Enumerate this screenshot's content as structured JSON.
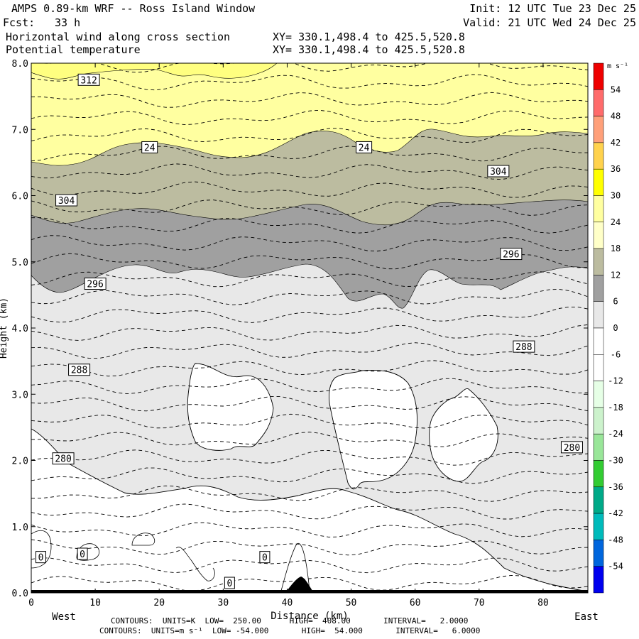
{
  "header": {
    "title": "AMPS 0.89-km WRF -- Ross Island Window",
    "fcst_label": "Fcst:",
    "fcst_value": "33 h",
    "init": "Init: 12 UTC Tue 23 Dec 25",
    "valid": "Valid: 21 UTC Wed 24 Dec 25",
    "field1": "Horizontal wind along cross section",
    "field2": "Potential temperature",
    "xy1": "XY= 330.1,498.4 to 425.5,520.8",
    "xy2": "XY= 330.1,498.4 to 425.5,520.8"
  },
  "chart_data": {
    "type": "heatmap",
    "title": "Horizontal wind along cross section (shaded) and potential temperature (contours)",
    "xlabel": "Distance (km)",
    "ylabel": "Height (km)",
    "xlim": [
      0,
      87
    ],
    "ylim": [
      0,
      8
    ],
    "x_ticks": [
      0,
      10,
      20,
      30,
      40,
      50,
      60,
      70,
      80
    ],
    "y_ticks": [
      "0.0",
      "1.0",
      "2.0",
      "3.0",
      "4.0",
      "5.0",
      "6.0",
      "7.0",
      "8.0"
    ],
    "x_end_labels": {
      "left": "West",
      "right": "East"
    },
    "colorbar": {
      "units_label": "m s⁻¹",
      "levels": [
        54,
        48,
        42,
        36,
        30,
        24,
        18,
        12,
        6,
        0,
        -6,
        -12,
        -18,
        -24,
        -30,
        -36,
        -42,
        -48,
        -54
      ],
      "colors": [
        "#ee0000",
        "#ff6b6b",
        "#ffa07a",
        "#ffd24d",
        "#ffff00",
        "#ffffa0",
        "#ffffc8",
        "#bcbca0",
        "#a0a0a0",
        "#e8e8e8",
        "#ffffff",
        "#ffffff",
        "#e6ffe6",
        "#ccf2cc",
        "#99e699",
        "#33cc33",
        "#00aa88",
        "#00bbbb",
        "#0066dd",
        "#0000ee"
      ]
    },
    "wind_regions": [
      {
        "speed_class": "24-30",
        "color": "#ffffa0"
      },
      {
        "speed_class": "18-24",
        "color": "#bcbca0"
      },
      {
        "speed_class": "12-18",
        "color": "#a0a0a0"
      },
      {
        "speed_class": "6-12",
        "color": "#e8e8e8"
      },
      {
        "speed_class": "0-6",
        "color": "#ffffff"
      }
    ],
    "contour_labels": [
      {
        "text": "312",
        "x": 9,
        "z": 7.75
      },
      {
        "text": "24",
        "x": 18.5,
        "z": 6.73
      },
      {
        "text": "24",
        "x": 52,
        "z": 6.73
      },
      {
        "text": "304",
        "x": 73,
        "z": 6.37
      },
      {
        "text": "304",
        "x": 5.5,
        "z": 5.93
      },
      {
        "text": "296",
        "x": 75,
        "z": 5.12
      },
      {
        "text": "296",
        "x": 10,
        "z": 4.67
      },
      {
        "text": "288",
        "x": 77,
        "z": 3.72
      },
      {
        "text": "288",
        "x": 7.5,
        "z": 3.37
      },
      {
        "text": "280",
        "x": 84.5,
        "z": 2.2
      },
      {
        "text": "280",
        "x": 5,
        "z": 2.03
      },
      {
        "text": "0",
        "x": 1.5,
        "z": 0.54
      },
      {
        "text": "0",
        "x": 8,
        "z": 0.59
      },
      {
        "text": "0",
        "x": 36.5,
        "z": 0.54
      },
      {
        "text": "0",
        "x": 31,
        "z": 0.15
      }
    ],
    "theta_contours": {
      "units": "K",
      "low": 250.0,
      "high": 408.0,
      "interval": 2.0
    },
    "wind_contours": {
      "units": "m s⁻¹",
      "low": -54.0,
      "high": 54.0,
      "interval": 6.0
    }
  },
  "footer": {
    "line1": "CONTOURS:  UNITS=K  LOW=  250.00      HIGH=  408.00       INTERVAL=   2.0000",
    "line2": "CONTOURS:  UNITS=m s⁻¹  LOW= -54.000       HIGH=  54.000       INTERVAL=   6.0000"
  }
}
